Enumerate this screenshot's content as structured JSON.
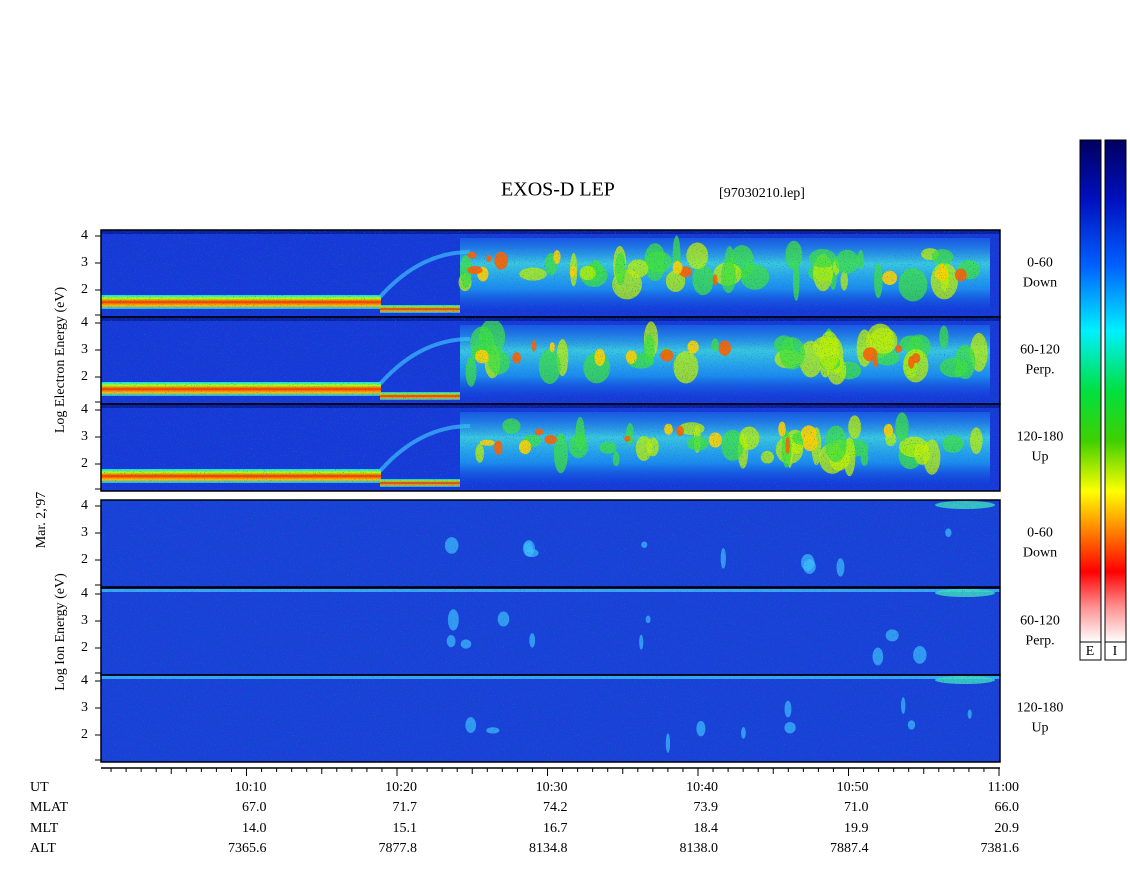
{
  "header": {
    "title": "EXOS-D LEP",
    "file": "[97030210.lep]"
  },
  "date": "Mar. 2,'97",
  "electron": {
    "axis_label": "Log Electron Energy (eV)",
    "panels": [
      {
        "label": "0-60",
        "sublabel": "Down",
        "yticks": [
          "4",
          "3",
          "2"
        ]
      },
      {
        "label": "60-120",
        "sublabel": "Perp.",
        "yticks": [
          "4",
          "3",
          "2"
        ]
      },
      {
        "label": "120-180",
        "sublabel": "Up",
        "yticks": [
          "4",
          "3",
          "2"
        ]
      }
    ]
  },
  "ion": {
    "axis_label": "Log Ion Energy (eV)",
    "panels": [
      {
        "label": "0-60",
        "sublabel": "Down",
        "yticks": [
          "4",
          "3",
          "2"
        ]
      },
      {
        "label": "60-120",
        "sublabel": "Perp.",
        "yticks": [
          "4",
          "3",
          "2"
        ]
      },
      {
        "label": "120-180",
        "sublabel": "Up",
        "yticks": [
          "4",
          "3",
          "2"
        ]
      }
    ]
  },
  "ephemeris": {
    "row_labels": [
      "UT",
      "MLAT",
      "MLT",
      "ALT"
    ],
    "columns": [
      [
        "10:10",
        "67.0",
        "14.0",
        "7365.6"
      ],
      [
        "10:20",
        "71.7",
        "15.1",
        "7877.8"
      ],
      [
        "10:30",
        "74.2",
        "16.7",
        "8134.8"
      ],
      [
        "10:40",
        "73.9",
        "18.4",
        "8138.0"
      ],
      [
        "10:50",
        "71.0",
        "19.9",
        "7887.4"
      ],
      [
        "11:00",
        "66.0",
        "20.9",
        "7381.6"
      ]
    ]
  },
  "colorbar": {
    "labels": [
      "E",
      "I"
    ]
  }
}
